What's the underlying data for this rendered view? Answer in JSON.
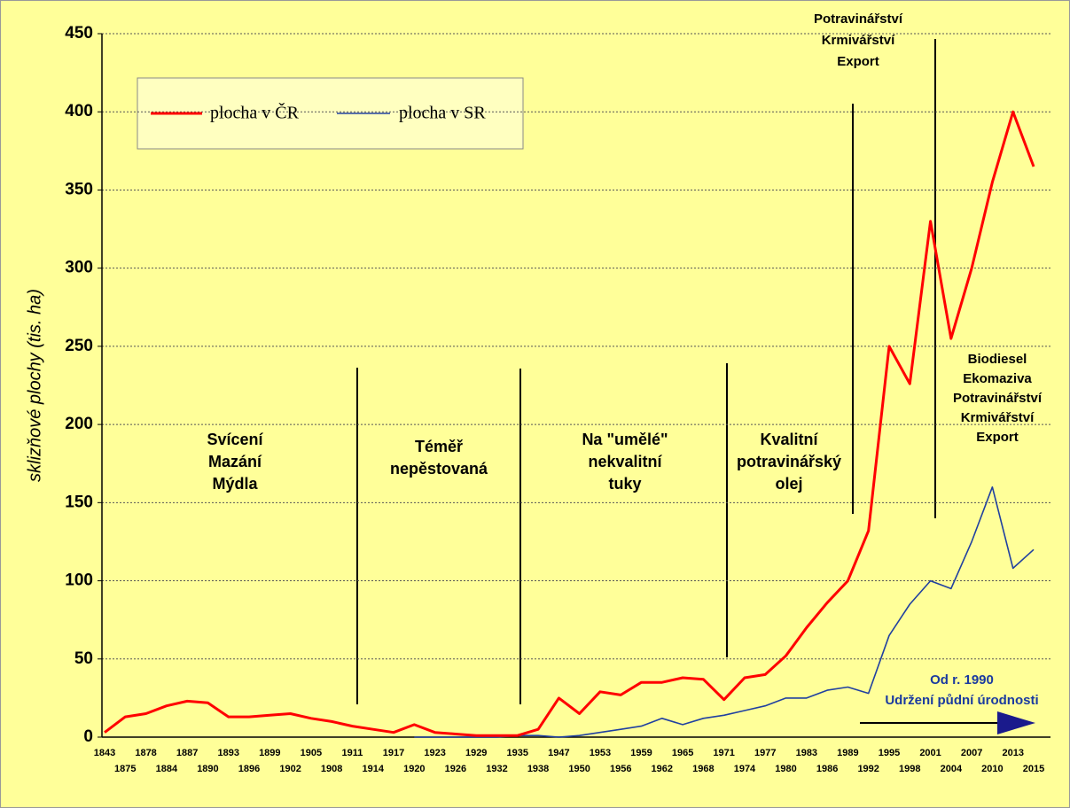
{
  "chart_data": {
    "type": "line",
    "y_label": "sklizňové plochy (tis. ha)",
    "categories": [
      "1843",
      "1875",
      "1878",
      "1884",
      "1887",
      "1890",
      "1893",
      "1896",
      "1899",
      "1902",
      "1905",
      "1908",
      "1911",
      "1914",
      "1917",
      "1920",
      "1923",
      "1926",
      "1929",
      "1932",
      "1935",
      "1938",
      "1947",
      "1950",
      "1953",
      "1956",
      "1959",
      "1962",
      "1965",
      "1968",
      "1971",
      "1974",
      "1977",
      "1980",
      "1983",
      "1986",
      "1989",
      "1992",
      "1995",
      "1998",
      "2001",
      "2004",
      "2007",
      "2010",
      "2013",
      "2015"
    ],
    "series": [
      {
        "name": "plocha v ČR",
        "color": "#ff0000",
        "values": [
          3,
          13,
          15,
          20,
          23,
          22,
          13,
          13,
          14,
          15,
          12,
          10,
          7,
          5,
          3,
          8,
          3,
          2,
          1,
          1,
          1,
          5,
          25,
          15,
          29,
          27,
          35,
          35,
          38,
          37,
          24,
          38,
          40,
          52,
          70,
          86,
          100,
          132,
          250,
          226,
          330,
          255,
          300,
          355,
          400,
          365
        ]
      },
      {
        "name": "plocha v SR",
        "color": "#2040a0",
        "values": [
          null,
          null,
          null,
          null,
          null,
          null,
          null,
          null,
          null,
          null,
          null,
          null,
          null,
          null,
          null,
          0,
          0,
          0,
          0,
          0,
          1,
          1,
          0,
          1,
          3,
          5,
          7,
          12,
          8,
          12,
          14,
          17,
          20,
          25,
          25,
          30,
          32,
          28,
          65,
          85,
          100,
          95,
          125,
          160,
          108,
          120
        ]
      }
    ],
    "ylim": [
      0,
      450
    ],
    "yticks": [
      0,
      50,
      100,
      150,
      200,
      250,
      300,
      350,
      400,
      450
    ],
    "grid": true,
    "annotations": [
      {
        "lines": [
          "Svícení",
          "Mazání",
          "Mýdla"
        ]
      },
      {
        "lines": [
          "Téměř",
          "nepěstovaná"
        ]
      },
      {
        "lines": [
          "Na \"umělé\"",
          "nekvalitní",
          "tuky"
        ]
      },
      {
        "lines": [
          "Kvalitní",
          "potravinářský",
          "olej"
        ]
      },
      {
        "lines": [
          "Potravinářství",
          "Krmivářství",
          "Export"
        ]
      },
      {
        "lines": [
          "Biodiesel",
          "Ekomaziva",
          "Potravinářství",
          "Krmivářství",
          "Export"
        ]
      },
      {
        "lines": [
          "Od r. 1990",
          "Udržení půdní úrodnosti"
        ]
      }
    ]
  }
}
